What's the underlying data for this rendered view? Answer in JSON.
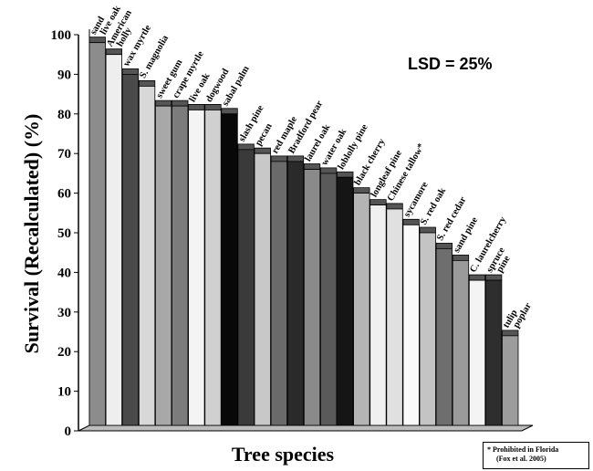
{
  "chart_data": {
    "type": "bar",
    "title": "",
    "ylabel": "Survival (Recalculated) (%)",
    "xlabel": "Tree species",
    "ylim": [
      0,
      100
    ],
    "yticks": [
      0,
      10,
      20,
      30,
      40,
      50,
      60,
      70,
      80,
      90,
      100
    ],
    "annotation": "LSD = 25%",
    "footnote": {
      "line1": "* Prohibited in Florida",
      "line2": "(Fox et al. 2005)"
    },
    "bars": [
      {
        "label": [
          "sand",
          "live oak"
        ],
        "value": 98,
        "color": "#8c8c8c"
      },
      {
        "label": [
          "American",
          "holly"
        ],
        "value": 95,
        "color": "#eeeeee"
      },
      {
        "label": [
          "wax myrtle"
        ],
        "value": 90,
        "color": "#4a4a4a"
      },
      {
        "label": [
          "S. magnolia"
        ],
        "value": 87,
        "color": "#d8d8d8"
      },
      {
        "label": [
          "sweet gum"
        ],
        "value": 82,
        "color": "#a8a8a8"
      },
      {
        "label": [
          "crape myrtle"
        ],
        "value": 82,
        "color": "#7c7c7c"
      },
      {
        "label": [
          "live oak"
        ],
        "value": 81,
        "color": "#f4f4f4"
      },
      {
        "label": [
          "dogwood"
        ],
        "value": 81,
        "color": "#d0d0d0"
      },
      {
        "label": [
          "sabal palm"
        ],
        "value": 80,
        "color": "#080808"
      },
      {
        "label": [
          "slash pine"
        ],
        "value": 71,
        "color": "#3a3a3a"
      },
      {
        "label": [
          "pecan"
        ],
        "value": 70,
        "color": "#c8c8c8"
      },
      {
        "label": [
          "red maple"
        ],
        "value": 68,
        "color": "#6a6a6a"
      },
      {
        "label": [
          "Bradford pear"
        ],
        "value": 68,
        "color": "#2a2a2a"
      },
      {
        "label": [
          "laurel oak"
        ],
        "value": 66,
        "color": "#8a8a8a"
      },
      {
        "label": [
          "water oak"
        ],
        "value": 65,
        "color": "#5a5a5a"
      },
      {
        "label": [
          "loblolly pine"
        ],
        "value": 64,
        "color": "#151515"
      },
      {
        "label": [
          "black cherry"
        ],
        "value": 60,
        "color": "#b4b4b4"
      },
      {
        "label": [
          "longleaf pine"
        ],
        "value": 57,
        "color": "#f0f0f0"
      },
      {
        "label": [
          "Chinese tallow*"
        ],
        "value": 56,
        "color": "#e0e0e0"
      },
      {
        "label": [
          "sycamore"
        ],
        "value": 52,
        "color": "#fafafa"
      },
      {
        "label": [
          "S. red oak"
        ],
        "value": 50,
        "color": "#c4c4c4"
      },
      {
        "label": [
          "S. red cedar"
        ],
        "value": 46,
        "color": "#6e6e6e"
      },
      {
        "label": [
          "sand pine"
        ],
        "value": 43,
        "color": "#9a9a9a"
      },
      {
        "label": [
          "C. laurelcherry"
        ],
        "value": 38,
        "color": "#f4f4f4"
      },
      {
        "label": [
          "spruce",
          "pine"
        ],
        "value": 38,
        "color": "#2e2e2e"
      },
      {
        "label": [
          "tulip",
          "poplar"
        ],
        "value": 24,
        "color": "#9c9c9c"
      }
    ]
  }
}
